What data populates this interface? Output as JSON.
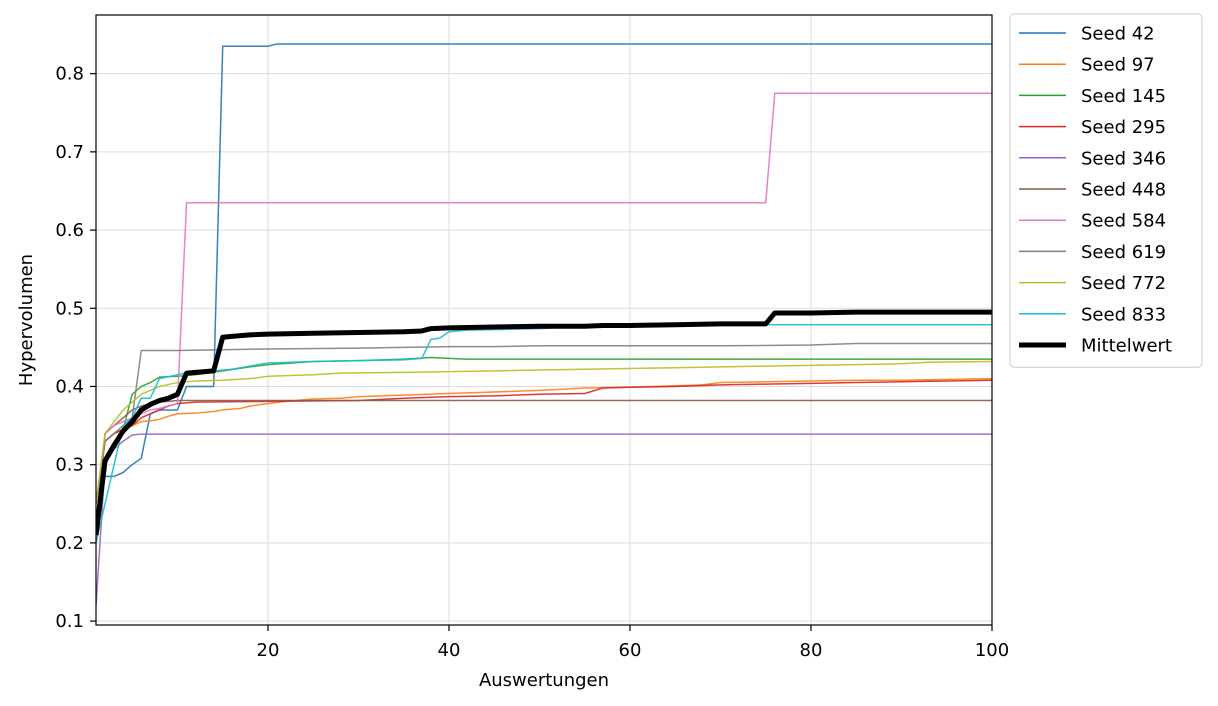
{
  "chart_data": {
    "type": "line",
    "xlabel": "Auswertungen",
    "ylabel": "Hypervolumen",
    "xlim": [
      1,
      100
    ],
    "ylim": [
      0.095,
      0.875
    ],
    "xticks": [
      20,
      40,
      60,
      80,
      100
    ],
    "yticks": [
      0.1,
      0.2,
      0.3,
      0.4,
      0.5,
      0.6,
      0.7,
      0.8
    ],
    "grid": true,
    "legend_position": "outside-top-right",
    "series": [
      {
        "name": "Seed 42",
        "color": "#1f77b4",
        "width": 1.5,
        "points": [
          [
            1,
            0.26
          ],
          [
            2,
            0.285
          ],
          [
            3,
            0.285
          ],
          [
            4,
            0.29
          ],
          [
            5,
            0.3
          ],
          [
            6,
            0.308
          ],
          [
            7,
            0.365
          ],
          [
            8,
            0.37
          ],
          [
            9,
            0.37
          ],
          [
            10,
            0.37
          ],
          [
            11,
            0.4
          ],
          [
            12,
            0.4
          ],
          [
            13,
            0.4
          ],
          [
            14,
            0.4
          ],
          [
            15,
            0.835
          ],
          [
            20,
            0.835
          ],
          [
            21,
            0.838
          ],
          [
            100,
            0.838
          ]
        ]
      },
      {
        "name": "Seed 97",
        "color": "#ff7f0e",
        "width": 1.5,
        "points": [
          [
            1,
            0.25
          ],
          [
            2,
            0.33
          ],
          [
            3,
            0.34
          ],
          [
            4,
            0.345
          ],
          [
            5,
            0.35
          ],
          [
            6,
            0.355
          ],
          [
            7,
            0.356
          ],
          [
            8,
            0.358
          ],
          [
            9,
            0.362
          ],
          [
            10,
            0.365
          ],
          [
            12,
            0.366
          ],
          [
            14,
            0.368
          ],
          [
            15,
            0.37
          ],
          [
            17,
            0.372
          ],
          [
            18,
            0.375
          ],
          [
            20,
            0.378
          ],
          [
            22,
            0.381
          ],
          [
            25,
            0.384
          ],
          [
            28,
            0.385
          ],
          [
            30,
            0.387
          ],
          [
            35,
            0.389
          ],
          [
            40,
            0.391
          ],
          [
            45,
            0.393
          ],
          [
            50,
            0.395
          ],
          [
            55,
            0.398
          ],
          [
            60,
            0.399
          ],
          [
            65,
            0.401
          ],
          [
            68,
            0.402
          ],
          [
            70,
            0.405
          ],
          [
            75,
            0.406
          ],
          [
            80,
            0.407
          ],
          [
            85,
            0.408
          ],
          [
            90,
            0.408
          ],
          [
            100,
            0.41
          ]
        ]
      },
      {
        "name": "Seed 145",
        "color": "#2ca02c",
        "width": 1.5,
        "points": [
          [
            1,
            0.25
          ],
          [
            2,
            0.33
          ],
          [
            3,
            0.34
          ],
          [
            4,
            0.345
          ],
          [
            5,
            0.39
          ],
          [
            6,
            0.4
          ],
          [
            7,
            0.405
          ],
          [
            8,
            0.412
          ],
          [
            10,
            0.413
          ],
          [
            12,
            0.415
          ],
          [
            15,
            0.42
          ],
          [
            18,
            0.425
          ],
          [
            20,
            0.428
          ],
          [
            25,
            0.432
          ],
          [
            30,
            0.433
          ],
          [
            35,
            0.435
          ],
          [
            38,
            0.437
          ],
          [
            40,
            0.436
          ],
          [
            42,
            0.435
          ],
          [
            100,
            0.435
          ]
        ]
      },
      {
        "name": "Seed 295",
        "color": "#d62728",
        "width": 1.5,
        "points": [
          [
            1,
            0.25
          ],
          [
            2,
            0.33
          ],
          [
            3,
            0.34
          ],
          [
            4,
            0.345
          ],
          [
            5,
            0.35
          ],
          [
            6,
            0.36
          ],
          [
            7,
            0.365
          ],
          [
            8,
            0.37
          ],
          [
            9,
            0.375
          ],
          [
            10,
            0.378
          ],
          [
            12,
            0.38
          ],
          [
            20,
            0.381
          ],
          [
            30,
            0.382
          ],
          [
            35,
            0.385
          ],
          [
            40,
            0.387
          ],
          [
            45,
            0.388
          ],
          [
            50,
            0.39
          ],
          [
            55,
            0.391
          ],
          [
            57,
            0.398
          ],
          [
            60,
            0.399
          ],
          [
            65,
            0.4
          ],
          [
            70,
            0.402
          ],
          [
            75,
            0.403
          ],
          [
            80,
            0.404
          ],
          [
            85,
            0.405
          ],
          [
            90,
            0.406
          ],
          [
            95,
            0.407
          ],
          [
            100,
            0.408
          ]
        ]
      },
      {
        "name": "Seed 346",
        "color": "#9467bd",
        "width": 1.5,
        "points": [
          [
            1,
            0.12
          ],
          [
            2,
            0.3
          ],
          [
            3,
            0.32
          ],
          [
            4,
            0.33
          ],
          [
            5,
            0.338
          ],
          [
            6,
            0.339
          ],
          [
            100,
            0.339
          ]
        ]
      },
      {
        "name": "Seed 448",
        "color": "#8c564b",
        "width": 1.5,
        "points": [
          [
            1,
            0.2
          ],
          [
            2,
            0.34
          ],
          [
            3,
            0.35
          ],
          [
            4,
            0.36
          ],
          [
            5,
            0.37
          ],
          [
            6,
            0.375
          ],
          [
            7,
            0.378
          ],
          [
            8,
            0.38
          ],
          [
            9,
            0.381
          ],
          [
            10,
            0.382
          ],
          [
            100,
            0.382
          ]
        ]
      },
      {
        "name": "Seed 584",
        "color": "#e377c2",
        "width": 1.5,
        "points": [
          [
            1,
            0.2
          ],
          [
            2,
            0.34
          ],
          [
            3,
            0.35
          ],
          [
            4,
            0.355
          ],
          [
            5,
            0.36
          ],
          [
            6,
            0.365
          ],
          [
            7,
            0.37
          ],
          [
            8,
            0.372
          ],
          [
            9,
            0.375
          ],
          [
            10,
            0.378
          ],
          [
            11,
            0.635
          ],
          [
            75,
            0.635
          ],
          [
            76,
            0.775
          ],
          [
            100,
            0.775
          ]
        ]
      },
      {
        "name": "Seed 619",
        "color": "#7f7f7f",
        "width": 1.5,
        "points": [
          [
            1,
            0.25
          ],
          [
            2,
            0.33
          ],
          [
            3,
            0.34
          ],
          [
            4,
            0.35
          ],
          [
            5,
            0.36
          ],
          [
            6,
            0.446
          ],
          [
            10,
            0.446
          ],
          [
            15,
            0.447
          ],
          [
            20,
            0.448
          ],
          [
            30,
            0.449
          ],
          [
            35,
            0.45
          ],
          [
            40,
            0.451
          ],
          [
            45,
            0.451
          ],
          [
            50,
            0.452
          ],
          [
            60,
            0.452
          ],
          [
            70,
            0.452
          ],
          [
            80,
            0.453
          ],
          [
            85,
            0.455
          ],
          [
            100,
            0.455
          ]
        ]
      },
      {
        "name": "Seed 772",
        "color": "#bcbd22",
        "width": 1.5,
        "points": [
          [
            1,
            0.25
          ],
          [
            2,
            0.34
          ],
          [
            3,
            0.355
          ],
          [
            4,
            0.37
          ],
          [
            5,
            0.38
          ],
          [
            6,
            0.39
          ],
          [
            7,
            0.395
          ],
          [
            8,
            0.4
          ],
          [
            10,
            0.405
          ],
          [
            12,
            0.407
          ],
          [
            15,
            0.408
          ],
          [
            18,
            0.41
          ],
          [
            20,
            0.413
          ],
          [
            25,
            0.415
          ],
          [
            28,
            0.417
          ],
          [
            35,
            0.418
          ],
          [
            40,
            0.419
          ],
          [
            45,
            0.42
          ],
          [
            50,
            0.421
          ],
          [
            55,
            0.422
          ],
          [
            60,
            0.423
          ],
          [
            65,
            0.424
          ],
          [
            70,
            0.425
          ],
          [
            75,
            0.426
          ],
          [
            80,
            0.427
          ],
          [
            85,
            0.428
          ],
          [
            90,
            0.429
          ],
          [
            93,
            0.431
          ],
          [
            100,
            0.432
          ]
        ]
      },
      {
        "name": "Seed 833",
        "color": "#17becf",
        "width": 1.5,
        "points": [
          [
            1,
            0.2
          ],
          [
            2,
            0.25
          ],
          [
            3,
            0.3
          ],
          [
            4,
            0.35
          ],
          [
            5,
            0.36
          ],
          [
            6,
            0.385
          ],
          [
            7,
            0.385
          ],
          [
            8,
            0.41
          ],
          [
            10,
            0.415
          ],
          [
            12,
            0.42
          ],
          [
            14,
            0.42
          ],
          [
            16,
            0.422
          ],
          [
            20,
            0.43
          ],
          [
            25,
            0.432
          ],
          [
            30,
            0.433
          ],
          [
            35,
            0.434
          ],
          [
            37,
            0.436
          ],
          [
            38,
            0.46
          ],
          [
            39,
            0.462
          ],
          [
            40,
            0.47
          ],
          [
            42,
            0.472
          ],
          [
            50,
            0.474
          ],
          [
            55,
            0.477
          ],
          [
            60,
            0.478
          ],
          [
            70,
            0.479
          ],
          [
            80,
            0.479
          ],
          [
            90,
            0.479
          ],
          [
            100,
            0.479
          ]
        ]
      },
      {
        "name": "Mittelwert",
        "color": "#000000",
        "width": 5,
        "points": [
          [
            1,
            0.21
          ],
          [
            2,
            0.305
          ],
          [
            3,
            0.325
          ],
          [
            4,
            0.343
          ],
          [
            5,
            0.355
          ],
          [
            6,
            0.37
          ],
          [
            7,
            0.377
          ],
          [
            8,
            0.382
          ],
          [
            9,
            0.385
          ],
          [
            10,
            0.39
          ],
          [
            11,
            0.417
          ],
          [
            12,
            0.418
          ],
          [
            13,
            0.419
          ],
          [
            14,
            0.42
          ],
          [
            15,
            0.463
          ],
          [
            16,
            0.464
          ],
          [
            18,
            0.466
          ],
          [
            20,
            0.467
          ],
          [
            25,
            0.468
          ],
          [
            30,
            0.469
          ],
          [
            35,
            0.47
          ],
          [
            37,
            0.471
          ],
          [
            38,
            0.474
          ],
          [
            40,
            0.475
          ],
          [
            45,
            0.476
          ],
          [
            50,
            0.477
          ],
          [
            55,
            0.477
          ],
          [
            57,
            0.478
          ],
          [
            60,
            0.478
          ],
          [
            65,
            0.479
          ],
          [
            70,
            0.48
          ],
          [
            74,
            0.48
          ],
          [
            75,
            0.48
          ],
          [
            76,
            0.494
          ],
          [
            80,
            0.494
          ],
          [
            85,
            0.495
          ],
          [
            90,
            0.495
          ],
          [
            95,
            0.495
          ],
          [
            100,
            0.495
          ]
        ]
      }
    ]
  }
}
